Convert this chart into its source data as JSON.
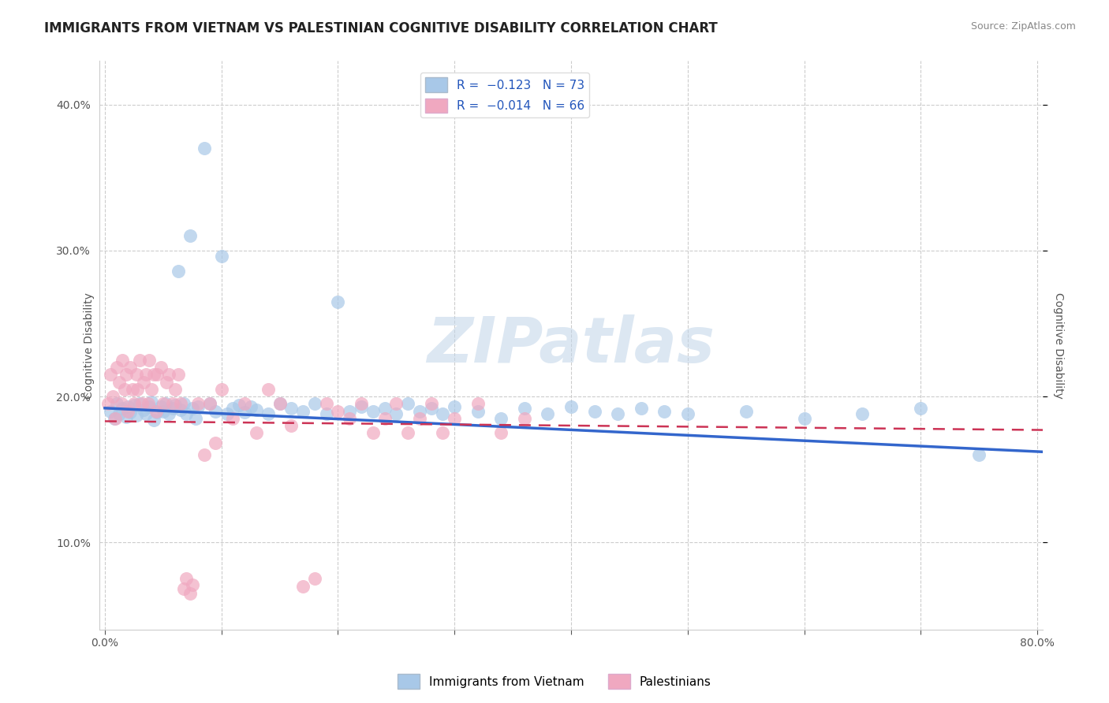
{
  "title": "IMMIGRANTS FROM VIETNAM VS PALESTINIAN COGNITIVE DISABILITY CORRELATION CHART",
  "source": "Source: ZipAtlas.com",
  "ylabel": "Cognitive Disability",
  "xlabel": "",
  "xlim": [
    -0.005,
    0.805
  ],
  "ylim": [
    0.04,
    0.43
  ],
  "xticks": [
    0.0,
    0.1,
    0.2,
    0.3,
    0.4,
    0.5,
    0.6,
    0.7,
    0.8
  ],
  "xticklabels": [
    "0.0%",
    "",
    "",
    "",
    "",
    "",
    "",
    "",
    "80.0%"
  ],
  "yticks": [
    0.1,
    0.2,
    0.3,
    0.4
  ],
  "yticklabels": [
    "10.0%",
    "20.0%",
    "30.0%",
    "40.0%"
  ],
  "grid_color": "#cccccc",
  "background_color": "#ffffff",
  "watermark": "ZIPatlas",
  "watermark_color": "#c0d4e8",
  "legend_R1": "-0.123",
  "legend_N1": "73",
  "legend_R2": "-0.014",
  "legend_N2": "66",
  "series1_color": "#a8c8e8",
  "series1_line_color": "#3366cc",
  "series2_color": "#f0a8c0",
  "series2_line_color": "#cc3355",
  "series1_label": "Immigrants from Vietnam",
  "series2_label": "Palestinians",
  "title_fontsize": 12,
  "axis_fontsize": 10,
  "tick_fontsize": 10,
  "vietnam_x": [
    0.005,
    0.008,
    0.01,
    0.012,
    0.015,
    0.018,
    0.02,
    0.022,
    0.025,
    0.027,
    0.03,
    0.033,
    0.035,
    0.038,
    0.04,
    0.042,
    0.045,
    0.048,
    0.05,
    0.052,
    0.055,
    0.058,
    0.06,
    0.063,
    0.065,
    0.068,
    0.07,
    0.073,
    0.075,
    0.078,
    0.08,
    0.085,
    0.09,
    0.095,
    0.1,
    0.105,
    0.11,
    0.115,
    0.12,
    0.125,
    0.13,
    0.14,
    0.15,
    0.16,
    0.17,
    0.18,
    0.19,
    0.2,
    0.21,
    0.22,
    0.23,
    0.24,
    0.25,
    0.26,
    0.27,
    0.28,
    0.29,
    0.3,
    0.32,
    0.34,
    0.36,
    0.38,
    0.4,
    0.42,
    0.44,
    0.46,
    0.48,
    0.5,
    0.55,
    0.6,
    0.65,
    0.7,
    0.75
  ],
  "vietnam_y": [
    0.19,
    0.185,
    0.195,
    0.188,
    0.192,
    0.186,
    0.193,
    0.189,
    0.194,
    0.187,
    0.195,
    0.191,
    0.188,
    0.193,
    0.196,
    0.184,
    0.189,
    0.193,
    0.19,
    0.195,
    0.188,
    0.192,
    0.194,
    0.286,
    0.191,
    0.195,
    0.188,
    0.31,
    0.192,
    0.185,
    0.193,
    0.37,
    0.195,
    0.19,
    0.296,
    0.188,
    0.192,
    0.194,
    0.189,
    0.193,
    0.191,
    0.188,
    0.195,
    0.192,
    0.19,
    0.195,
    0.188,
    0.265,
    0.19,
    0.193,
    0.19,
    0.192,
    0.188,
    0.195,
    0.19,
    0.192,
    0.188,
    0.193,
    0.19,
    0.185,
    0.192,
    0.188,
    0.193,
    0.19,
    0.188,
    0.192,
    0.19,
    0.188,
    0.19,
    0.185,
    0.188,
    0.192,
    0.16
  ],
  "palestine_x": [
    0.003,
    0.005,
    0.007,
    0.009,
    0.01,
    0.012,
    0.014,
    0.015,
    0.017,
    0.018,
    0.02,
    0.022,
    0.024,
    0.025,
    0.027,
    0.028,
    0.03,
    0.032,
    0.033,
    0.035,
    0.037,
    0.038,
    0.04,
    0.042,
    0.044,
    0.045,
    0.048,
    0.05,
    0.053,
    0.055,
    0.058,
    0.06,
    0.063,
    0.065,
    0.068,
    0.07,
    0.073,
    0.075,
    0.08,
    0.085,
    0.09,
    0.095,
    0.1,
    0.11,
    0.12,
    0.13,
    0.14,
    0.15,
    0.16,
    0.17,
    0.18,
    0.19,
    0.2,
    0.21,
    0.22,
    0.23,
    0.24,
    0.25,
    0.26,
    0.27,
    0.28,
    0.29,
    0.3,
    0.32,
    0.34,
    0.36
  ],
  "palestine_y": [
    0.195,
    0.215,
    0.2,
    0.185,
    0.22,
    0.21,
    0.195,
    0.225,
    0.205,
    0.215,
    0.19,
    0.22,
    0.205,
    0.195,
    0.215,
    0.205,
    0.225,
    0.195,
    0.21,
    0.215,
    0.195,
    0.225,
    0.205,
    0.215,
    0.19,
    0.215,
    0.22,
    0.195,
    0.21,
    0.215,
    0.195,
    0.205,
    0.215,
    0.195,
    0.068,
    0.075,
    0.065,
    0.071,
    0.195,
    0.16,
    0.195,
    0.168,
    0.205,
    0.185,
    0.195,
    0.175,
    0.205,
    0.195,
    0.18,
    0.07,
    0.075,
    0.195,
    0.19,
    0.185,
    0.195,
    0.175,
    0.185,
    0.195,
    0.175,
    0.185,
    0.195,
    0.175,
    0.185,
    0.195,
    0.175,
    0.185
  ]
}
